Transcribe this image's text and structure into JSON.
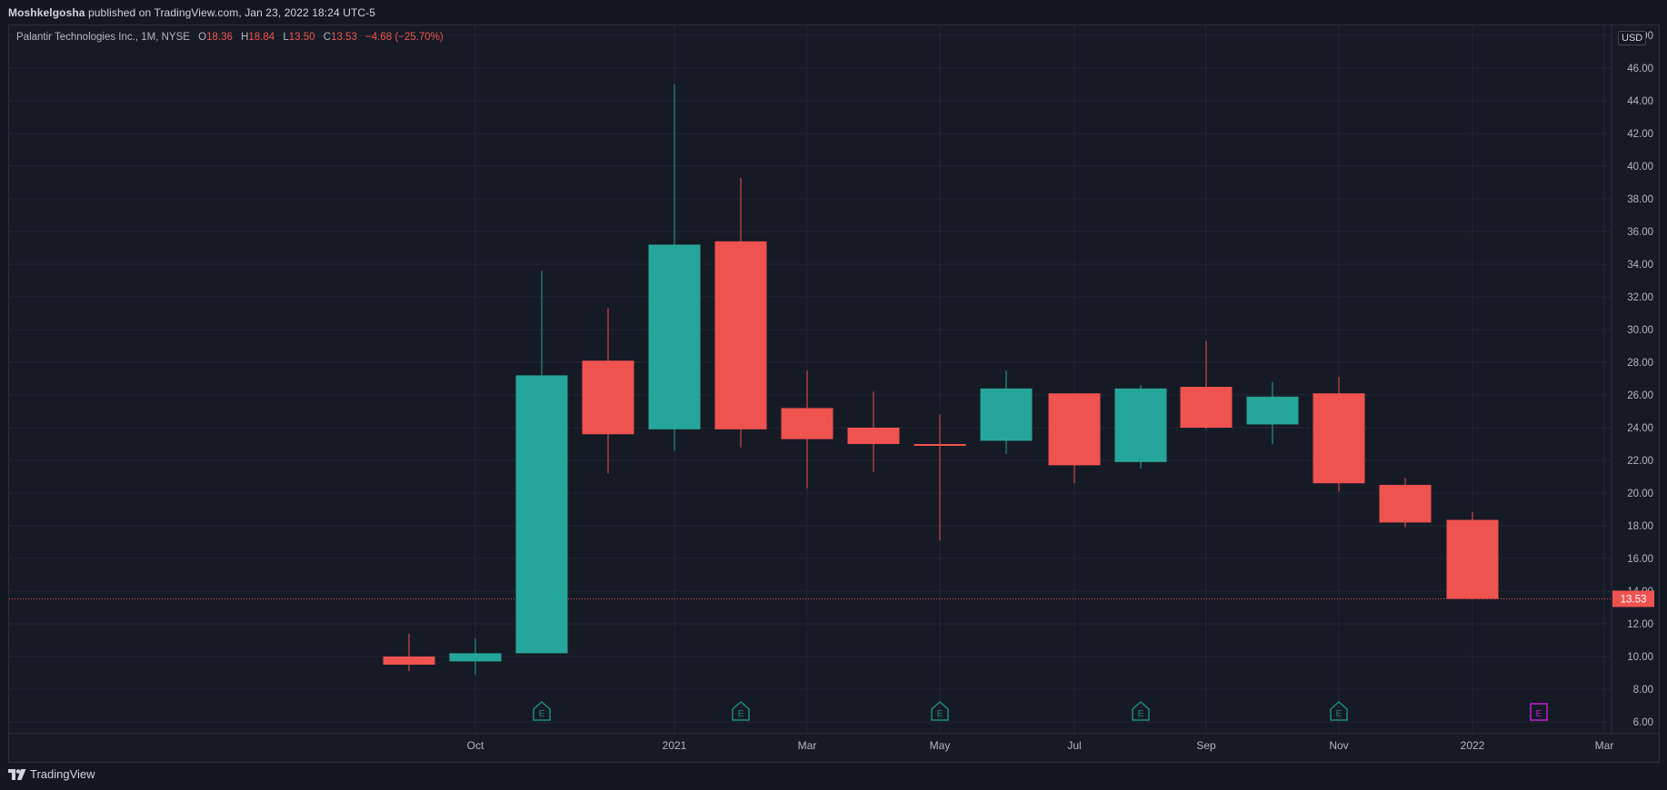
{
  "header": {
    "author": "Moshkelgosha",
    "publish_text": "published on TradingView.com, Jan 23, 2022 18:24 UTC-5"
  },
  "legend": {
    "symbol": "Palantir Technologies Inc., 1M, NYSE",
    "o_label": "O",
    "o_value": "18.36",
    "h_label": "H",
    "h_value": "18.84",
    "l_label": "L",
    "l_value": "13.50",
    "c_label": "C",
    "c_value": "13.53",
    "change": "−4.68 (−25.70%)"
  },
  "currency": "USD",
  "footer": {
    "brand": "TradingView",
    "logo_icon": "tradingview-logo-icon"
  },
  "colors": {
    "up": "#26a69a",
    "down": "#ef5350",
    "background": "#161a25",
    "grid": "#232632",
    "earnings": "#1e8a78",
    "earnings_upcoming": "#c020d0"
  },
  "chart_data": {
    "type": "candlestick",
    "ylim": [
      5,
      48
    ],
    "y_ticks": [
      "6.00",
      "8.00",
      "10.00",
      "12.00",
      "14.00",
      "16.00",
      "18.00",
      "20.00",
      "22.00",
      "24.00",
      "26.00",
      "28.00",
      "30.00",
      "32.00",
      "34.00",
      "36.00",
      "38.00",
      "40.00",
      "42.00",
      "44.00",
      "46.00",
      "48.00"
    ],
    "x_ticks": [
      "Oct",
      "2021",
      "Mar",
      "May",
      "Jul",
      "Sep",
      "Nov",
      "2022",
      "Mar"
    ],
    "last_price": "13.53",
    "candles": [
      {
        "period": "2020-09",
        "o": 10.0,
        "h": 11.4,
        "l": 9.1,
        "c": 9.5
      },
      {
        "period": "2020-10",
        "o": 9.7,
        "h": 11.1,
        "l": 8.9,
        "c": 10.2
      },
      {
        "period": "2020-11",
        "o": 10.2,
        "h": 33.6,
        "l": 10.2,
        "c": 27.2
      },
      {
        "period": "2020-12",
        "o": 28.1,
        "h": 31.3,
        "l": 21.2,
        "c": 23.6
      },
      {
        "period": "2021-01",
        "o": 23.9,
        "h": 45.0,
        "l": 22.6,
        "c": 35.2
      },
      {
        "period": "2021-02",
        "o": 35.4,
        "h": 39.3,
        "l": 22.8,
        "c": 23.9
      },
      {
        "period": "2021-03",
        "o": 25.2,
        "h": 27.5,
        "l": 20.3,
        "c": 23.3
      },
      {
        "period": "2021-04",
        "o": 24.0,
        "h": 26.2,
        "l": 21.3,
        "c": 23.0
      },
      {
        "period": "2021-05",
        "o": 23.0,
        "h": 24.8,
        "l": 17.1,
        "c": 22.9
      },
      {
        "period": "2021-06",
        "o": 23.2,
        "h": 27.5,
        "l": 22.4,
        "c": 26.4
      },
      {
        "period": "2021-07",
        "o": 26.1,
        "h": 26.1,
        "l": 20.6,
        "c": 21.7
      },
      {
        "period": "2021-08",
        "o": 21.9,
        "h": 26.6,
        "l": 21.5,
        "c": 26.4
      },
      {
        "period": "2021-09",
        "o": 26.5,
        "h": 29.3,
        "l": 23.9,
        "c": 24.0
      },
      {
        "period": "2021-10",
        "o": 24.2,
        "h": 26.8,
        "l": 23.0,
        "c": 25.9
      },
      {
        "period": "2021-11",
        "o": 26.1,
        "h": 27.1,
        "l": 20.1,
        "c": 20.6
      },
      {
        "period": "2021-12",
        "o": 20.5,
        "h": 20.9,
        "l": 17.9,
        "c": 18.2
      },
      {
        "period": "2022-01",
        "o": 18.36,
        "h": 18.84,
        "l": 13.5,
        "c": 13.53
      }
    ],
    "earnings_markers": [
      {
        "period": "2020-11",
        "label": "E",
        "upcoming": false
      },
      {
        "period": "2021-02",
        "label": "E",
        "upcoming": false
      },
      {
        "period": "2021-05",
        "label": "E",
        "upcoming": false
      },
      {
        "period": "2021-08",
        "label": "E",
        "upcoming": false
      },
      {
        "period": "2021-11",
        "label": "E",
        "upcoming": false
      },
      {
        "period": "2022-02",
        "label": "E",
        "upcoming": true
      }
    ]
  }
}
